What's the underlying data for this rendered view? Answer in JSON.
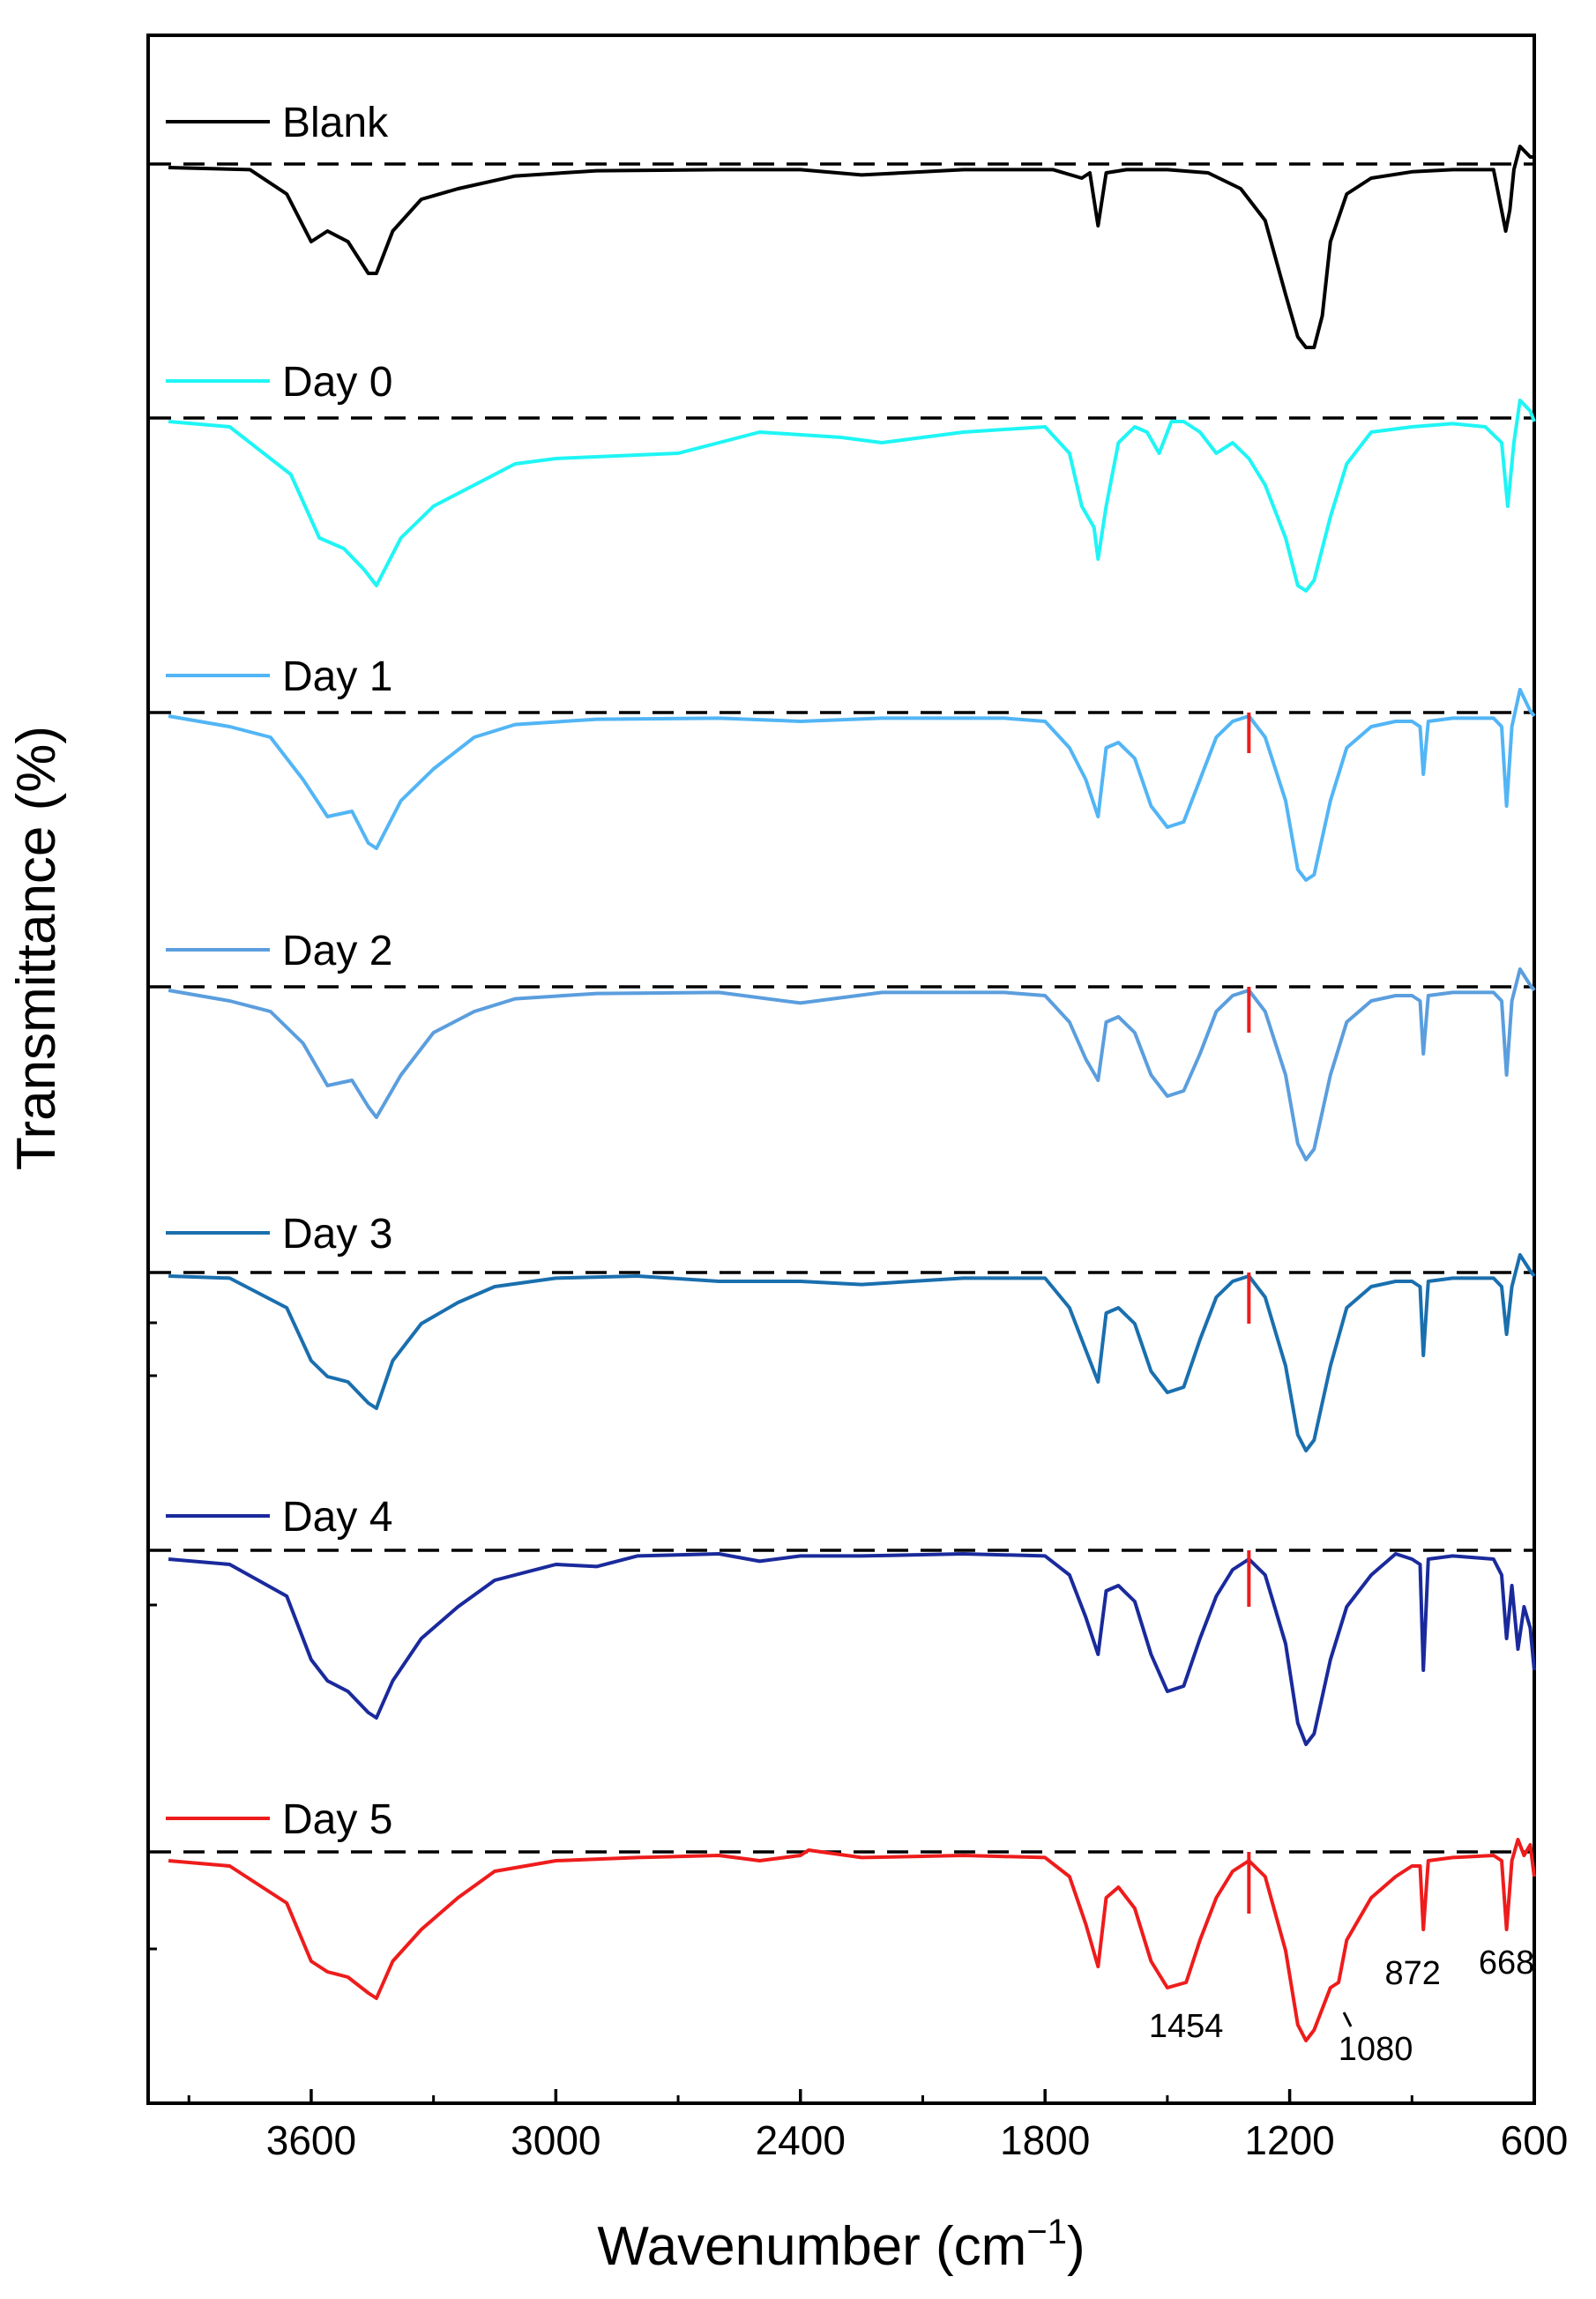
{
  "chart_data": {
    "type": "line",
    "title": "",
    "xlabel": "Wavenumber (cm",
    "xlabel_superscript": "−1",
    "xlabel_close": ")",
    "ylabel": "Transmittance (%)",
    "x_reversed": true,
    "xlim": [
      4000,
      600
    ],
    "x_ticks": [
      3600,
      3000,
      2400,
      1800,
      1200,
      600
    ],
    "x_tick_labels": [
      "3600",
      "3000",
      "2400",
      "1800",
      "1200",
      "600"
    ],
    "y_units": "relative transmittance (offset per series, 0 = baseline, negative = absorption depth)",
    "series": [
      {
        "name": "Blank",
        "color": "#000000",
        "x": [
          3950,
          3750,
          3660,
          3600,
          3560,
          3510,
          3460,
          3440,
          3400,
          3330,
          3240,
          3100,
          2900,
          2600,
          2400,
          2250,
          2000,
          1780,
          1710,
          1690,
          1670,
          1650,
          1600,
          1500,
          1400,
          1320,
          1260,
          1210,
          1180,
          1160,
          1140,
          1120,
          1100,
          1060,
          1000,
          900,
          800,
          700,
          670,
          660,
          650,
          635,
          610,
          600
        ],
        "y": [
          0,
          -0.02,
          -0.25,
          -0.7,
          -0.6,
          -0.7,
          -1.0,
          -1.0,
          -0.6,
          -0.3,
          -0.2,
          -0.08,
          -0.03,
          -0.02,
          -0.02,
          -0.07,
          -0.02,
          -0.02,
          -0.1,
          -0.05,
          -0.55,
          -0.05,
          -0.02,
          -0.02,
          -0.05,
          -0.2,
          -0.5,
          -1.2,
          -1.6,
          -1.7,
          -1.7,
          -1.4,
          -0.7,
          -0.25,
          -0.1,
          -0.04,
          -0.02,
          -0.02,
          -0.6,
          -0.4,
          -0.02,
          0.2,
          0.1,
          0.1
        ]
      },
      {
        "name": "Day 0",
        "color": "#1ff5f5",
        "x": [
          3950,
          3800,
          3650,
          3580,
          3520,
          3470,
          3440,
          3380,
          3300,
          3200,
          3100,
          3000,
          2700,
          2500,
          2300,
          2200,
          2000,
          1800,
          1740,
          1710,
          1680,
          1670,
          1650,
          1620,
          1580,
          1550,
          1520,
          1490,
          1460,
          1420,
          1380,
          1340,
          1300,
          1260,
          1210,
          1180,
          1160,
          1140,
          1100,
          1060,
          1000,
          900,
          800,
          720,
          680,
          665,
          650,
          635,
          610,
          600
        ],
        "y": [
          0,
          -0.05,
          -0.5,
          -1.1,
          -1.2,
          -1.4,
          -1.55,
          -1.1,
          -0.8,
          -0.6,
          -0.4,
          -0.35,
          -0.3,
          -0.1,
          -0.15,
          -0.2,
          -0.1,
          -0.05,
          -0.3,
          -0.8,
          -1.0,
          -1.3,
          -0.8,
          -0.2,
          -0.05,
          -0.1,
          -0.3,
          0.0,
          0.0,
          -0.1,
          -0.3,
          -0.2,
          -0.35,
          -0.6,
          -1.1,
          -1.55,
          -1.6,
          -1.5,
          -0.9,
          -0.4,
          -0.1,
          -0.05,
          -0.02,
          -0.05,
          -0.2,
          -0.8,
          -0.2,
          0.2,
          0.1,
          0.0
        ]
      },
      {
        "name": "Day 1",
        "color": "#52b5f5",
        "x": [
          3950,
          3800,
          3700,
          3620,
          3560,
          3500,
          3460,
          3440,
          3380,
          3300,
          3200,
          3100,
          2900,
          2600,
          2400,
          2200,
          1900,
          1800,
          1740,
          1700,
          1670,
          1650,
          1620,
          1580,
          1540,
          1500,
          1460,
          1420,
          1380,
          1340,
          1300,
          1260,
          1210,
          1180,
          1160,
          1140,
          1100,
          1060,
          1000,
          940,
          900,
          880,
          872,
          860,
          800,
          700,
          680,
          668,
          655,
          635,
          610,
          600
        ],
        "y": [
          0,
          -0.1,
          -0.2,
          -0.6,
          -0.95,
          -0.9,
          -1.2,
          -1.25,
          -0.8,
          -0.5,
          -0.2,
          -0.08,
          -0.03,
          -0.02,
          -0.05,
          -0.02,
          -0.02,
          -0.05,
          -0.3,
          -0.6,
          -0.95,
          -0.3,
          -0.25,
          -0.4,
          -0.85,
          -1.05,
          -1.0,
          -0.6,
          -0.2,
          -0.05,
          0.0,
          -0.2,
          -0.8,
          -1.45,
          -1.55,
          -1.5,
          -0.8,
          -0.3,
          -0.1,
          -0.05,
          -0.05,
          -0.1,
          -0.55,
          -0.05,
          -0.02,
          -0.02,
          -0.1,
          -0.85,
          -0.1,
          0.25,
          0.05,
          0.0
        ]
      },
      {
        "name": "Day 2",
        "color": "#5b9ede",
        "x": [
          3950,
          3800,
          3700,
          3620,
          3560,
          3500,
          3460,
          3440,
          3380,
          3300,
          3200,
          3100,
          2900,
          2600,
          2400,
          2200,
          1900,
          1800,
          1740,
          1700,
          1670,
          1650,
          1620,
          1580,
          1540,
          1500,
          1460,
          1420,
          1380,
          1340,
          1300,
          1260,
          1210,
          1180,
          1160,
          1140,
          1100,
          1060,
          1000,
          940,
          900,
          880,
          872,
          860,
          800,
          700,
          680,
          668,
          655,
          635,
          610,
          600
        ],
        "y": [
          0,
          -0.1,
          -0.2,
          -0.5,
          -0.9,
          -0.85,
          -1.1,
          -1.2,
          -0.8,
          -0.4,
          -0.2,
          -0.08,
          -0.03,
          -0.02,
          -0.12,
          -0.02,
          -0.02,
          -0.05,
          -0.3,
          -0.65,
          -0.85,
          -0.3,
          -0.25,
          -0.4,
          -0.8,
          -1.0,
          -0.95,
          -0.6,
          -0.2,
          -0.05,
          0.0,
          -0.2,
          -0.8,
          -1.45,
          -1.6,
          -1.5,
          -0.8,
          -0.3,
          -0.1,
          -0.05,
          -0.05,
          -0.1,
          -0.6,
          -0.05,
          -0.02,
          -0.02,
          -0.1,
          -0.8,
          -0.1,
          0.2,
          0.05,
          0.0
        ]
      },
      {
        "name": "Day 3",
        "color": "#1a6fae",
        "x": [
          3950,
          3800,
          3660,
          3600,
          3560,
          3510,
          3460,
          3440,
          3400,
          3330,
          3240,
          3150,
          3000,
          2800,
          2600,
          2400,
          2250,
          2000,
          1800,
          1740,
          1700,
          1670,
          1650,
          1620,
          1580,
          1540,
          1500,
          1460,
          1420,
          1380,
          1340,
          1300,
          1260,
          1210,
          1180,
          1160,
          1140,
          1100,
          1060,
          1000,
          940,
          900,
          880,
          872,
          860,
          800,
          700,
          680,
          668,
          655,
          635,
          610,
          600
        ],
        "y": [
          0,
          -0.02,
          -0.3,
          -0.8,
          -0.95,
          -1.0,
          -1.2,
          -1.25,
          -0.8,
          -0.45,
          -0.25,
          -0.1,
          -0.02,
          0.0,
          -0.05,
          -0.05,
          -0.08,
          -0.02,
          -0.02,
          -0.3,
          -0.7,
          -1.0,
          -0.35,
          -0.3,
          -0.45,
          -0.9,
          -1.1,
          -1.05,
          -0.6,
          -0.2,
          -0.05,
          0.0,
          -0.2,
          -0.85,
          -1.5,
          -1.65,
          -1.55,
          -0.85,
          -0.3,
          -0.1,
          -0.05,
          -0.05,
          -0.1,
          -0.75,
          -0.05,
          -0.02,
          -0.02,
          -0.1,
          -0.55,
          -0.1,
          0.2,
          0.05,
          0.0
        ]
      },
      {
        "name": "Day 4",
        "color": "#1a2a9c",
        "x": [
          3950,
          3800,
          3660,
          3600,
          3560,
          3510,
          3460,
          3440,
          3400,
          3330,
          3240,
          3150,
          3000,
          2900,
          2800,
          2600,
          2500,
          2400,
          2250,
          2000,
          1800,
          1740,
          1700,
          1670,
          1650,
          1620,
          1580,
          1540,
          1500,
          1460,
          1420,
          1380,
          1340,
          1300,
          1260,
          1210,
          1180,
          1160,
          1140,
          1100,
          1060,
          1000,
          940,
          900,
          880,
          872,
          860,
          800,
          700,
          680,
          668,
          655,
          640,
          625,
          610,
          600
        ],
        "y": [
          -0.05,
          -0.1,
          -0.4,
          -1.0,
          -1.2,
          -1.3,
          -1.5,
          -1.55,
          -1.2,
          -0.8,
          -0.5,
          -0.25,
          -0.1,
          -0.12,
          -0.02,
          0.0,
          -0.07,
          -0.02,
          -0.02,
          0.0,
          -0.02,
          -0.2,
          -0.6,
          -0.95,
          -0.35,
          -0.3,
          -0.45,
          -0.95,
          -1.3,
          -1.25,
          -0.8,
          -0.4,
          -0.15,
          -0.05,
          -0.2,
          -0.85,
          -1.6,
          -1.8,
          -1.7,
          -1.0,
          -0.5,
          -0.2,
          0.0,
          -0.05,
          -0.1,
          -1.1,
          -0.05,
          -0.02,
          -0.05,
          -0.2,
          -0.8,
          -0.3,
          -0.9,
          -0.5,
          -0.7,
          -1.1
        ]
      },
      {
        "name": "Day 5",
        "color": "#ee1c1c",
        "x": [
          3950,
          3800,
          3660,
          3600,
          3560,
          3510,
          3460,
          3440,
          3400,
          3330,
          3240,
          3150,
          3000,
          2800,
          2600,
          2500,
          2400,
          2380,
          2250,
          2000,
          1800,
          1740,
          1700,
          1670,
          1650,
          1620,
          1580,
          1540,
          1500,
          1454,
          1420,
          1380,
          1340,
          1300,
          1260,
          1210,
          1180,
          1160,
          1140,
          1100,
          1080,
          1060,
          1000,
          940,
          900,
          880,
          872,
          860,
          800,
          700,
          680,
          668,
          655,
          640,
          625,
          610,
          600
        ],
        "y": [
          -0.05,
          -0.1,
          -0.45,
          -1.0,
          -1.1,
          -1.15,
          -1.3,
          -1.35,
          -1.0,
          -0.7,
          -0.4,
          -0.15,
          -0.05,
          -0.02,
          0.0,
          -0.05,
          0.0,
          0.05,
          -0.02,
          0.0,
          -0.02,
          -0.2,
          -0.65,
          -1.05,
          -0.4,
          -0.3,
          -0.5,
          -1.0,
          -1.25,
          -1.2,
          -0.8,
          -0.4,
          -0.15,
          -0.05,
          -0.2,
          -0.9,
          -1.6,
          -1.75,
          -1.65,
          -1.25,
          -1.2,
          -0.8,
          -0.4,
          -0.2,
          -0.1,
          -0.1,
          -0.7,
          -0.05,
          -0.02,
          0.0,
          -0.05,
          -0.7,
          -0.05,
          0.15,
          0.0,
          0.1,
          -0.2
        ]
      }
    ],
    "baselines": "dashed horizontal line above each spectrum",
    "markers": {
      "x": 1300,
      "color": "#ee1c1c",
      "series": [
        "Day 1",
        "Day 2",
        "Day 3",
        "Day 4",
        "Day 5"
      ]
    },
    "annotations": [
      {
        "text": "1454",
        "x": 1454,
        "series": "Day 5"
      },
      {
        "text": "1080",
        "x": 1080,
        "series": "Day 5"
      },
      {
        "text": "872",
        "x": 872,
        "series": "Day 5"
      },
      {
        "text": "668",
        "x": 668,
        "series": "Day 5"
      }
    ]
  }
}
